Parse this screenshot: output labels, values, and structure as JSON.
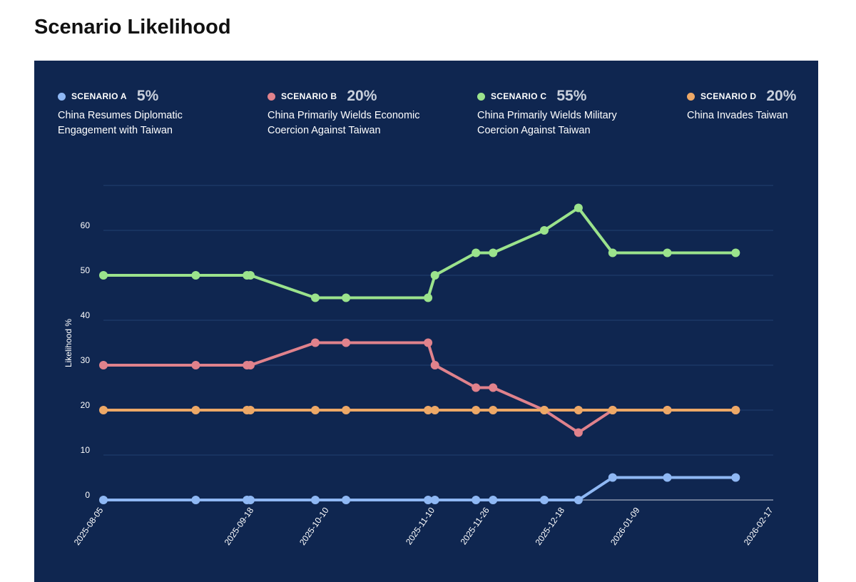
{
  "page": {
    "title": "Scenario Likelihood"
  },
  "legend": [
    {
      "code": "SCENARIO A",
      "pct": "5%",
      "desc": "China Resumes Diplomatic Engagement with Taiwan",
      "color": "#8fb8f4"
    },
    {
      "code": "SCENARIO B",
      "pct": "20%",
      "desc": "China Primarily Wields Economic Coercion Against Taiwan",
      "color": "#e0828c"
    },
    {
      "code": "SCENARIO C",
      "pct": "55%",
      "desc": "China Primarily Wields Military Coercion Against Taiwan",
      "color": "#9be38c"
    },
    {
      "code": "SCENARIO D",
      "pct": "20%",
      "desc": "China Invades Taiwan",
      "color": "#eda867"
    }
  ],
  "chart_data": {
    "type": "line",
    "xlabel": "",
    "ylabel": "Likelihood %",
    "ylim": [
      0,
      70
    ],
    "yticks": [
      0,
      10,
      20,
      30,
      40,
      50,
      60
    ],
    "grid": true,
    "x": [
      "2025-08-05",
      "2025-09-01",
      "2025-09-16",
      "2025-09-17",
      "2025-10-06",
      "2025-10-15",
      "2025-11-08",
      "2025-11-10",
      "2025-11-22",
      "2025-11-27",
      "2025-12-12",
      "2025-12-22",
      "2026-01-01",
      "2026-01-17",
      "2026-02-06"
    ],
    "xticks": [
      "2025-08-05",
      "2025-09-18",
      "2025-10-10",
      "2025-11-10",
      "2025-11-26",
      "2025-12-18",
      "2026-01-09",
      "2026-02-17"
    ],
    "series": [
      {
        "name": "SCENARIO A",
        "color": "#8fb8f4",
        "values": [
          0,
          0,
          0,
          0,
          0,
          0,
          0,
          0,
          0,
          0,
          0,
          0,
          5,
          5,
          5
        ]
      },
      {
        "name": "SCENARIO B",
        "color": "#e0828c",
        "values": [
          30,
          30,
          30,
          30,
          35,
          35,
          35,
          30,
          25,
          25,
          20,
          15,
          20,
          20,
          20
        ]
      },
      {
        "name": "SCENARIO C",
        "color": "#9be38c",
        "values": [
          50,
          50,
          50,
          50,
          45,
          45,
          45,
          50,
          55,
          55,
          60,
          65,
          55,
          55,
          55
        ]
      },
      {
        "name": "SCENARIO D",
        "color": "#eda867",
        "values": [
          20,
          20,
          20,
          20,
          20,
          20,
          20,
          20,
          20,
          20,
          20,
          20,
          20,
          20,
          20
        ]
      }
    ]
  }
}
